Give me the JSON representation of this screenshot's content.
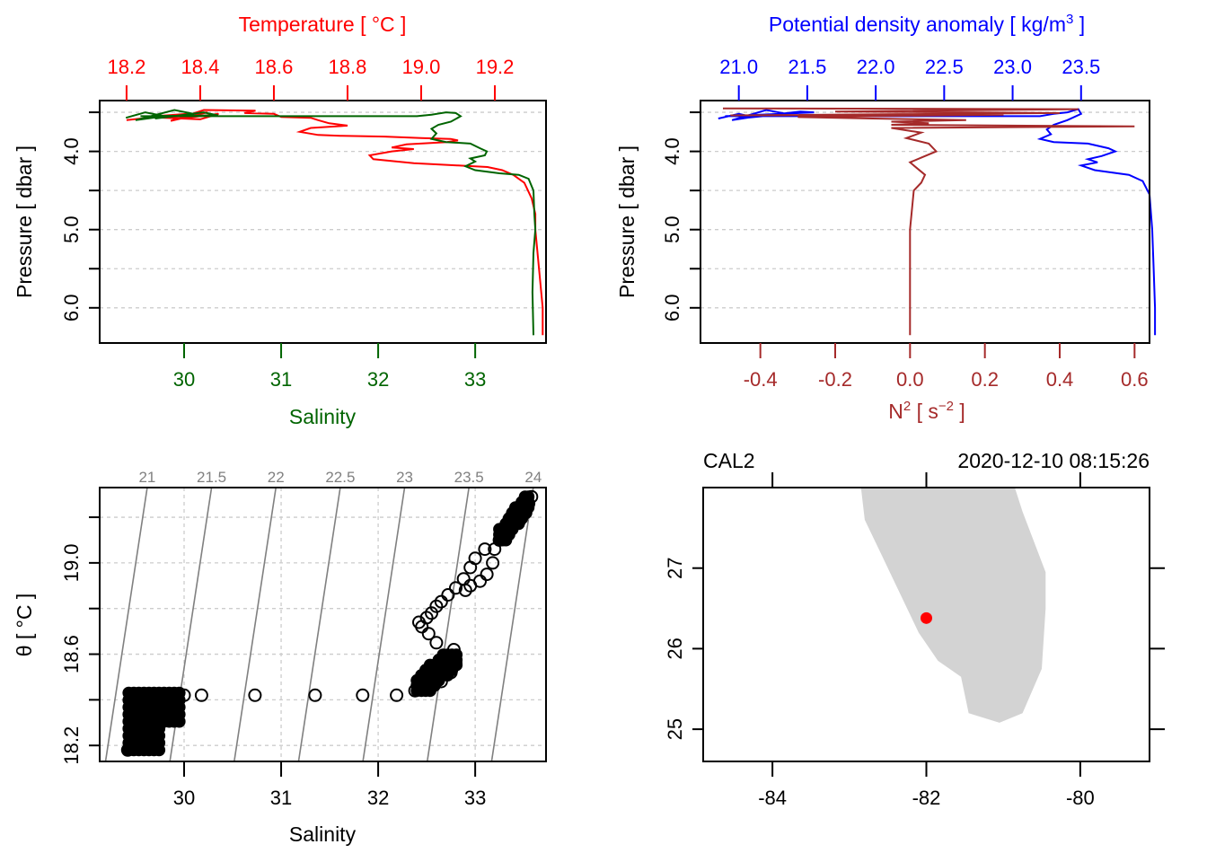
{
  "colors": {
    "temperature": "#ff0000",
    "salinity": "#006400",
    "density": "#0000ff",
    "n2": "#a52a2a",
    "grid": "#cccccc",
    "isopycnal": "#808080",
    "land": "#d3d3d3",
    "station": "#ff0000",
    "axis": "#000000"
  },
  "chart_data": [
    {
      "type": "line",
      "id": "profile-temperature-salinity",
      "title": "",
      "top_axis": {
        "label": "Temperature [ °C ]",
        "ticks": [
          "18.2",
          "18.4",
          "18.6",
          "18.8",
          "19.0",
          "19.2"
        ],
        "range": [
          18.127,
          19.339
        ]
      },
      "bottom_axis": {
        "label": "Salinity",
        "ticks": [
          "30",
          "31",
          "32",
          "33"
        ],
        "range": [
          29.13,
          33.73
        ]
      },
      "left_axis": {
        "label": "Pressure [ dbar ]",
        "ticks": [
          "4.0",
          "5.0",
          "6.0"
        ],
        "minor_ticks": [
          3.5,
          4.5,
          5.5
        ],
        "range": [
          3.35,
          6.45
        ],
        "reversed": true
      },
      "grid": true,
      "series": [
        {
          "name": "Temperature",
          "axis": "top",
          "points": [
            [
              18.2,
              3.6
            ],
            [
              18.3,
              3.55
            ],
            [
              18.35,
              3.58
            ],
            [
              18.45,
              3.52
            ],
            [
              18.4,
              3.59
            ],
            [
              18.25,
              3.56
            ],
            [
              18.42,
              3.5
            ],
            [
              18.32,
              3.61
            ],
            [
              18.41,
              3.47
            ],
            [
              18.55,
              3.48
            ],
            [
              18.52,
              3.51
            ],
            [
              18.6,
              3.52
            ],
            [
              18.62,
              3.56
            ],
            [
              18.7,
              3.57
            ],
            [
              18.72,
              3.6
            ],
            [
              18.75,
              3.64
            ],
            [
              18.8,
              3.67
            ],
            [
              18.7,
              3.7
            ],
            [
              18.67,
              3.75
            ],
            [
              18.72,
              3.79
            ],
            [
              18.78,
              3.8
            ],
            [
              18.9,
              3.81
            ],
            [
              19.0,
              3.83
            ],
            [
              19.08,
              3.84
            ],
            [
              19.1,
              3.86
            ],
            [
              19.07,
              3.88
            ],
            [
              18.96,
              3.91
            ],
            [
              18.92,
              3.95
            ],
            [
              18.98,
              3.97
            ],
            [
              18.92,
              4.0
            ],
            [
              18.86,
              4.05
            ],
            [
              18.87,
              4.1
            ],
            [
              18.98,
              4.15
            ],
            [
              19.1,
              4.18
            ],
            [
              19.18,
              4.2
            ],
            [
              19.22,
              4.24
            ],
            [
              19.25,
              4.3
            ],
            [
              19.28,
              4.4
            ],
            [
              19.29,
              4.5
            ],
            [
              19.3,
              4.6
            ],
            [
              19.31,
              4.8
            ],
            [
              19.31,
              5.0
            ],
            [
              19.32,
              5.5
            ],
            [
              19.33,
              6.0
            ],
            [
              19.33,
              6.35
            ]
          ]
        },
        {
          "name": "Salinity",
          "axis": "bottom",
          "points": [
            [
              29.4,
              3.57
            ],
            [
              29.6,
              3.5
            ],
            [
              29.8,
              3.55
            ],
            [
              29.5,
              3.6
            ],
            [
              29.9,
              3.47
            ],
            [
              30.1,
              3.52
            ],
            [
              29.7,
              3.58
            ],
            [
              30.2,
              3.5
            ],
            [
              30.35,
              3.54
            ],
            [
              29.55,
              3.55
            ],
            [
              32.4,
              3.55
            ],
            [
              32.55,
              3.53
            ],
            [
              32.7,
              3.5
            ],
            [
              32.8,
              3.51
            ],
            [
              32.85,
              3.55
            ],
            [
              32.75,
              3.62
            ],
            [
              32.62,
              3.66
            ],
            [
              32.55,
              3.71
            ],
            [
              32.6,
              3.77
            ],
            [
              32.55,
              3.84
            ],
            [
              32.7,
              3.88
            ],
            [
              32.95,
              3.9
            ],
            [
              33.05,
              3.96
            ],
            [
              33.12,
              4.0
            ],
            [
              33.1,
              4.05
            ],
            [
              32.95,
              4.09
            ],
            [
              33.0,
              4.13
            ],
            [
              32.9,
              4.19
            ],
            [
              33.0,
              4.24
            ],
            [
              33.25,
              4.28
            ],
            [
              33.45,
              4.3
            ],
            [
              33.55,
              4.35
            ],
            [
              33.6,
              4.5
            ],
            [
              33.61,
              4.8
            ],
            [
              33.62,
              5.0
            ],
            [
              33.6,
              5.3
            ],
            [
              33.59,
              5.8
            ],
            [
              33.6,
              6.35
            ]
          ]
        }
      ]
    },
    {
      "type": "line",
      "id": "profile-density-n2",
      "title": "",
      "top_axis": {
        "label": "Potential density anomaly [ kg/m³ ]",
        "ticks": [
          "21.0",
          "21.5",
          "22.0",
          "22.5",
          "23.0",
          "23.5"
        ],
        "range": [
          20.72,
          24.0
        ]
      },
      "bottom_axis": {
        "label": "N² [ s⁻² ]",
        "ticks": [
          "-0.4",
          "-0.2",
          "0.0",
          "0.2",
          "0.4",
          "0.6"
        ],
        "range": [
          -0.56,
          0.64
        ]
      },
      "left_axis": {
        "label": "Pressure [ dbar ]",
        "ticks": [
          "4.0",
          "5.0",
          "6.0"
        ],
        "minor_ticks": [
          3.5,
          4.5,
          5.5
        ],
        "range": [
          3.35,
          6.45
        ],
        "reversed": true
      },
      "grid": true,
      "series": [
        {
          "name": "Potential density anomaly",
          "axis": "top",
          "points": [
            [
              20.85,
              3.58
            ],
            [
              21.0,
              3.52
            ],
            [
              21.1,
              3.56
            ],
            [
              20.95,
              3.6
            ],
            [
              21.2,
              3.47
            ],
            [
              21.35,
              3.52
            ],
            [
              21.05,
              3.57
            ],
            [
              21.45,
              3.49
            ],
            [
              21.55,
              3.5
            ],
            [
              20.9,
              3.55
            ],
            [
              23.2,
              3.55
            ],
            [
              23.3,
              3.52
            ],
            [
              23.4,
              3.5
            ],
            [
              23.48,
              3.46
            ],
            [
              23.5,
              3.52
            ],
            [
              23.4,
              3.6
            ],
            [
              23.3,
              3.66
            ],
            [
              23.25,
              3.72
            ],
            [
              23.28,
              3.78
            ],
            [
              23.2,
              3.84
            ],
            [
              23.3,
              3.88
            ],
            [
              23.55,
              3.9
            ],
            [
              23.7,
              3.96
            ],
            [
              23.75,
              4.0
            ],
            [
              23.65,
              4.06
            ],
            [
              23.55,
              4.1
            ],
            [
              23.62,
              4.14
            ],
            [
              23.5,
              4.18
            ],
            [
              23.6,
              4.24
            ],
            [
              23.85,
              4.3
            ],
            [
              23.95,
              4.38
            ],
            [
              24.0,
              4.55
            ],
            [
              24.02,
              5.0
            ],
            [
              24.03,
              5.5
            ],
            [
              24.04,
              6.0
            ],
            [
              24.04,
              6.35
            ]
          ]
        },
        {
          "name": "N²",
          "axis": "bottom",
          "points": [
            [
              -0.5,
              3.45
            ],
            [
              0.45,
              3.46
            ],
            [
              -0.2,
              3.49
            ],
            [
              0.4,
              3.51
            ],
            [
              -0.48,
              3.54
            ],
            [
              0.25,
              3.53
            ],
            [
              -0.3,
              3.56
            ],
            [
              -0.1,
              3.58
            ],
            [
              0.15,
              3.6
            ],
            [
              -0.05,
              3.62
            ],
            [
              0.05,
              3.64
            ],
            [
              -0.05,
              3.66
            ],
            [
              0.6,
              3.68
            ],
            [
              -0.05,
              3.7
            ],
            [
              0.03,
              3.76
            ],
            [
              -0.01,
              3.83
            ],
            [
              0.05,
              3.9
            ],
            [
              0.07,
              4.0
            ],
            [
              0.03,
              4.08
            ],
            [
              0.0,
              4.14
            ],
            [
              0.02,
              4.22
            ],
            [
              0.04,
              4.3
            ],
            [
              0.03,
              4.4
            ],
            [
              0.01,
              4.5
            ],
            [
              0.0,
              5.0
            ],
            [
              0.0,
              5.5
            ],
            [
              0.0,
              6.35
            ]
          ]
        }
      ]
    },
    {
      "type": "scatter",
      "id": "ts-diagram",
      "title": "",
      "xlabel": "Salinity",
      "ylabel": "θ [ °C ]",
      "x_ticks": [
        "30",
        "31",
        "32",
        "33"
      ],
      "y_ticks": [
        "18.2",
        "18.6",
        "19.0"
      ],
      "y_minor_ticks": [
        18.4,
        18.8,
        19.2
      ],
      "xlim": [
        29.13,
        33.73
      ],
      "ylim": [
        18.13,
        19.33
      ],
      "grid": true,
      "isopycnals": {
        "labels": [
          "21",
          "21.5",
          "22",
          "22.5",
          "23",
          "23.5",
          "24"
        ],
        "values": [
          21,
          21.5,
          22,
          22.5,
          23,
          23.5,
          24
        ]
      },
      "points": [
        [
          29.45,
          18.42
        ],
        [
          29.5,
          18.4
        ],
        [
          29.6,
          18.38
        ],
        [
          29.7,
          18.36
        ],
        [
          29.5,
          18.32
        ],
        [
          29.55,
          18.28
        ],
        [
          29.6,
          18.25
        ],
        [
          29.45,
          18.22
        ],
        [
          29.42,
          18.18
        ],
        [
          29.7,
          18.2
        ],
        [
          29.8,
          18.42
        ],
        [
          29.9,
          18.41
        ],
        [
          30.0,
          18.42
        ],
        [
          29.6,
          18.3
        ],
        [
          29.7,
          18.34
        ],
        [
          30.18,
          18.42
        ],
        [
          30.73,
          18.42
        ],
        [
          31.35,
          18.42
        ],
        [
          31.84,
          18.42
        ],
        [
          32.19,
          18.42
        ],
        [
          32.38,
          18.44
        ],
        [
          32.5,
          18.45
        ],
        [
          32.65,
          18.48
        ],
        [
          32.75,
          18.52
        ],
        [
          32.8,
          18.56
        ],
        [
          32.78,
          18.62
        ],
        [
          32.6,
          18.65
        ],
        [
          32.52,
          18.69
        ],
        [
          32.45,
          18.72
        ],
        [
          32.42,
          18.74
        ],
        [
          32.5,
          18.76
        ],
        [
          32.55,
          18.78
        ],
        [
          32.6,
          18.81
        ],
        [
          32.65,
          18.83
        ],
        [
          32.72,
          18.86
        ],
        [
          32.8,
          18.89
        ],
        [
          32.88,
          18.93
        ],
        [
          32.95,
          18.98
        ],
        [
          33.0,
          19.02
        ],
        [
          33.1,
          19.06
        ],
        [
          33.2,
          19.06
        ],
        [
          33.18,
          19.0
        ],
        [
          33.12,
          18.95
        ],
        [
          33.05,
          18.92
        ],
        [
          32.95,
          18.9
        ],
        [
          32.9,
          18.88
        ],
        [
          33.25,
          19.1
        ],
        [
          33.35,
          19.14
        ],
        [
          33.45,
          19.18
        ],
        [
          33.52,
          19.22
        ],
        [
          33.55,
          19.26
        ],
        [
          33.58,
          19.29
        ]
      ]
    },
    {
      "type": "map",
      "id": "station-map",
      "title_left": "CAL2",
      "title_right": "2020-12-10 08:15:26",
      "x_ticks": [
        "-84",
        "-82",
        "-80"
      ],
      "y_ticks": [
        "25",
        "26",
        "27"
      ],
      "xlim": [
        -84.9,
        -79.1
      ],
      "ylim": [
        24.6,
        28.0
      ],
      "station": {
        "lon": -82.0,
        "lat": 26.38
      },
      "coastline": [
        [
          -82.85,
          28.0
        ],
        [
          -82.8,
          27.6
        ],
        [
          -82.6,
          27.2
        ],
        [
          -82.35,
          26.7
        ],
        [
          -82.1,
          26.2
        ],
        [
          -81.85,
          25.85
        ],
        [
          -81.55,
          25.65
        ],
        [
          -81.45,
          25.2
        ],
        [
          -81.05,
          25.08
        ],
        [
          -80.75,
          25.2
        ],
        [
          -80.5,
          25.75
        ],
        [
          -80.45,
          26.5
        ],
        [
          -80.45,
          26.95
        ],
        [
          -80.75,
          27.7
        ],
        [
          -80.85,
          28.0
        ]
      ]
    }
  ]
}
